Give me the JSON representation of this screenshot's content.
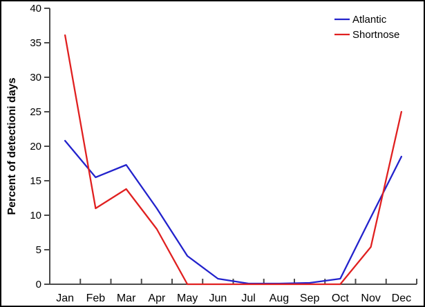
{
  "figure": {
    "background": "#ffffff",
    "border_color": "#000000",
    "axis_color": "#4a4a4a",
    "text_color": "#000000"
  },
  "chart_data": {
    "type": "line",
    "title": "",
    "xlabel": "",
    "ylabel": "Percent of detectioni days",
    "categories": [
      "Jan",
      "Feb",
      "Mar",
      "Apr",
      "May",
      "Jun",
      "Jul",
      "Aug",
      "Sep",
      "Oct",
      "Nov",
      "Dec"
    ],
    "series": [
      {
        "name": "Atlantic",
        "color": "#2222cc",
        "values": [
          20.8,
          15.5,
          17.3,
          11.0,
          4.1,
          0.8,
          0.1,
          0.1,
          0.2,
          0.8,
          9.7,
          18.5
        ]
      },
      {
        "name": "Shortnose",
        "color": "#e02020",
        "values": [
          36.1,
          11.0,
          13.8,
          8.0,
          0.0,
          0.0,
          0.0,
          0.0,
          0.0,
          0.0,
          5.4,
          25.0
        ]
      }
    ],
    "ylim": [
      0,
      40
    ],
    "ytick_step": 5,
    "grid": false,
    "legend_position": "top-right"
  }
}
